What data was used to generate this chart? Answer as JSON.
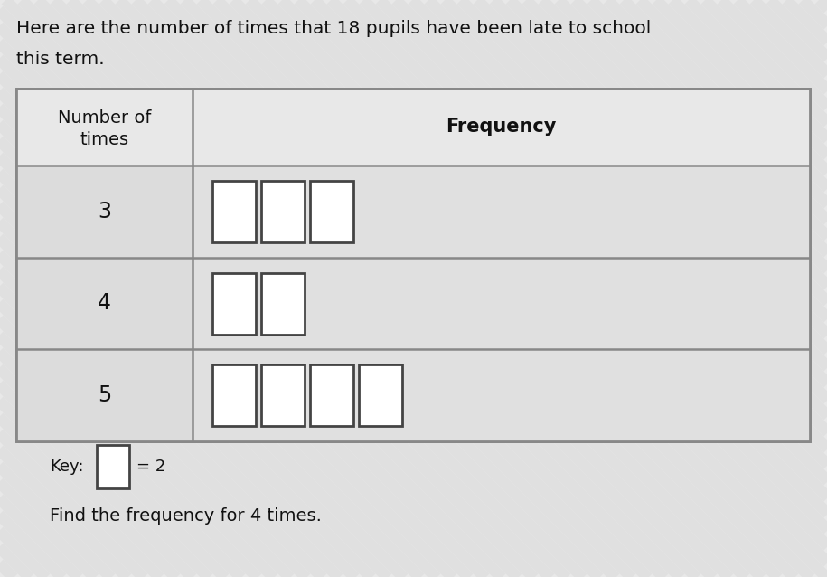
{
  "title_line1": "Here are the number of times that 18 pupils have been late to school",
  "title_line2": "this term.",
  "col1_header_line1": "Number of",
  "col1_header_line2": "times",
  "col2_header": "Frequency",
  "rows": [
    {
      "label": "3",
      "squares": 3
    },
    {
      "label": "4",
      "squares": 2
    },
    {
      "label": "5",
      "squares": 4
    }
  ],
  "key_label": "Key:",
  "key_text": "= 2",
  "footer_text": "Find the frequency for 4 times.",
  "bg_color": "#e8e8e8",
  "stripe_color1": "#e0e0e0",
  "stripe_color2": "#ececec",
  "table_fill": "#e4e4e4",
  "header_fill": "#e8e8e8",
  "cell_fill": "#e4e4e4",
  "border_color": "#888888",
  "square_fill": "#ffffff",
  "square_edge": "#444444",
  "text_color": "#111111",
  "title_fontsize": 14.5,
  "header_fontsize": 14,
  "label_fontsize": 17,
  "freq_fontsize": 15,
  "key_fontsize": 13,
  "footer_fontsize": 14
}
